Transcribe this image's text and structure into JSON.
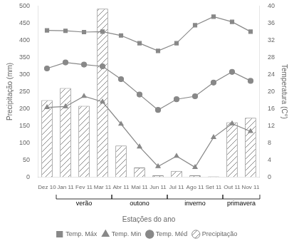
{
  "chart_data": {
    "type": "bar",
    "categories": [
      "Dez 10",
      "Jan 11",
      "Fev 11",
      "Mar 11",
      "Abr 11",
      "Mai 11",
      "Jun 11",
      "Jul 11",
      "Ago 11",
      "Set 11",
      "Out 11",
      "Nov 11"
    ],
    "series": [
      {
        "name": "Temp. Máx",
        "type": "line",
        "color": "#888888",
        "marker": "square",
        "axis": "y2",
        "values": [
          34.3,
          34.2,
          33.9,
          34.0,
          33.1,
          31.3,
          29.5,
          31.3,
          35.5,
          37.5,
          36.3,
          34.0
        ]
      },
      {
        "name": "Temp. Min",
        "type": "line",
        "color": "#888888",
        "marker": "triangle",
        "axis": "y2",
        "values": [
          16.3,
          16.5,
          18.9,
          17.6,
          12.4,
          7.1,
          2.5,
          4.9,
          2.3,
          9.3,
          12.5,
          10.7
        ]
      },
      {
        "name": "Temp. Méd",
        "type": "line",
        "color": "#888888",
        "marker": "circle",
        "axis": "y2",
        "values": [
          25.4,
          26.8,
          26.3,
          25.9,
          22.9,
          19.3,
          15.7,
          18.2,
          18.9,
          22.1,
          24.6,
          22.5
        ]
      },
      {
        "name": "Precipitação",
        "type": "bar",
        "color": "#888888",
        "values": [
          225,
          260,
          208,
          492,
          92,
          28,
          5,
          18,
          5,
          2,
          160,
          173
        ]
      }
    ],
    "ylim": [
      0,
      500
    ],
    "yticks": [
      0,
      50,
      100,
      150,
      200,
      250,
      300,
      350,
      400,
      450,
      500
    ],
    "y2lim": [
      0,
      40
    ],
    "y2ticks": [
      0,
      4,
      8,
      12,
      16,
      20,
      24,
      28,
      32,
      36,
      40
    ],
    "ylabel": "Precipitação (mm)",
    "y2label": "Temperatura (C°)",
    "xlabel": "Estações do ano",
    "annotations": [
      {
        "text": "verão",
        "x_start": 0.5,
        "x_end": 3.5
      },
      {
        "text": "outono",
        "x_start": 3.5,
        "x_end": 6.5
      },
      {
        "text": "inverno",
        "x_start": 6.5,
        "x_end": 9.5
      },
      {
        "text": "primavera",
        "x_start": 9.5,
        "x_end": 11.5
      }
    ],
    "grid": false,
    "legend": "bottom"
  }
}
